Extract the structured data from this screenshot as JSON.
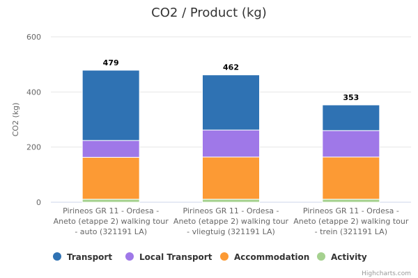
{
  "chart_data": {
    "type": "bar",
    "stacked": true,
    "title": "CO2 / Product (kg)",
    "xlabel": "",
    "ylabel": "CO2 (kg)",
    "ylim": [
      0,
      600
    ],
    "yticks": [
      0,
      200,
      400,
      600
    ],
    "ytick_labels": [
      "0",
      "200",
      "400",
      "600"
    ],
    "grid": true,
    "legend_position": "bottom",
    "categories": [
      [
        "Pirineos GR 11 - Ordesa -",
        "Aneto (etappe 2) walking tour",
        "- auto (321191 LA)"
      ],
      [
        "Pirineos GR 11 - Ordesa -",
        "Aneto (etappe 2) walking tour",
        "- vliegtuig (321191 LA)"
      ],
      [
        "Pirineos GR 11 - Ordesa -",
        "Aneto (etappe 2) walking tour",
        "- trein (321191 LA)"
      ]
    ],
    "series": [
      {
        "name": "Transport",
        "color": "#2f72b3",
        "values": [
          255,
          200,
          93
        ]
      },
      {
        "name": "Local Transport",
        "color": "#9f78e8",
        "values": [
          61,
          98,
          96
        ]
      },
      {
        "name": "Accommodation",
        "color": "#fc9a34",
        "values": [
          152,
          153,
          153
        ]
      },
      {
        "name": "Activity",
        "color": "#a5d18f",
        "values": [
          11,
          11,
          11
        ]
      }
    ],
    "totals": [
      479,
      462,
      353
    ],
    "total_labels": [
      "479",
      "462",
      "353"
    ],
    "credits": "Highcharts.com"
  }
}
